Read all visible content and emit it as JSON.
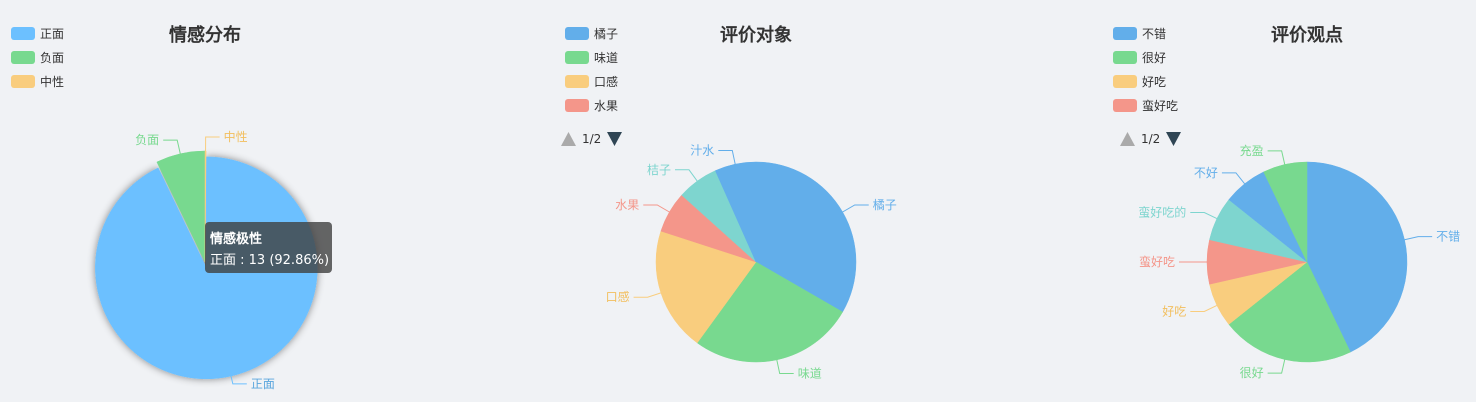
{
  "chart_data": [
    {
      "type": "pie",
      "title": "情感分布",
      "categories": [
        "正面",
        "负面",
        "中性"
      ],
      "values": [
        13,
        1,
        0
      ],
      "colors": [
        "#6cc0ff",
        "#78d98f",
        "#f9cd7e"
      ],
      "legend_position": "top-left",
      "tooltip": {
        "title": "情感极性",
        "text": "正面 : 13 (92.86%)"
      }
    },
    {
      "type": "pie",
      "title": "评价对象",
      "categories": [
        "橘子",
        "味道",
        "口感",
        "水果",
        "桔子",
        "汁水"
      ],
      "values": [
        5,
        4,
        3,
        1,
        1,
        1
      ],
      "colors": [
        "#62aeea",
        "#78d98f",
        "#f9cd7e",
        "#f4968a",
        "#7ed5cf",
        "#62aeea"
      ],
      "legend_position": "top-left",
      "pager": "1/2"
    },
    {
      "type": "pie",
      "title": "评价观点",
      "categories": [
        "不错",
        "很好",
        "好吃",
        "蛮好吃",
        "蛮好吃的",
        "不好",
        "充盈"
      ],
      "values": [
        6,
        3,
        1,
        1,
        1,
        1,
        1
      ],
      "colors": [
        "#62aeea",
        "#78d98f",
        "#f9cd7e",
        "#f4968a",
        "#7ed5cf",
        "#62aeea",
        "#78d98f"
      ],
      "legend_position": "top-left",
      "pager": "1/2"
    }
  ]
}
